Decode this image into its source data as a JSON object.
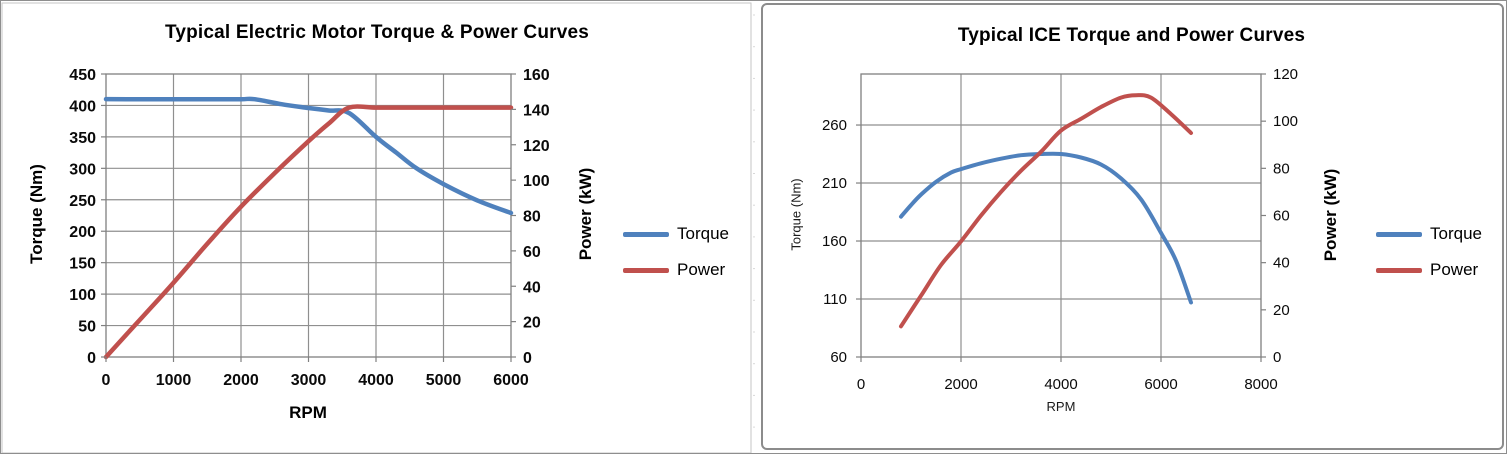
{
  "page": {
    "background": "#ffffff"
  },
  "chart_data": [
    {
      "type": "line",
      "title": "Typical Electric Motor Torque & Power Curves",
      "xlabel": "RPM",
      "ylabel_left": "Torque (Nm)",
      "ylabel_right": "Power (kW)",
      "xlim": [
        0,
        6000
      ],
      "x_ticks": [
        0,
        1000,
        2000,
        3000,
        4000,
        5000,
        6000
      ],
      "ylim_left": [
        0,
        450
      ],
      "y_left_ticks": [
        0,
        50,
        100,
        150,
        200,
        250,
        300,
        350,
        400,
        450
      ],
      "ylim_right": [
        0,
        160
      ],
      "y_right_ticks": [
        0,
        20,
        40,
        60,
        80,
        100,
        120,
        140,
        160
      ],
      "grid": true,
      "legend_position": "right",
      "legend": [
        "Torque",
        "Power"
      ],
      "series": [
        {
          "name": "Torque",
          "axis": "left",
          "color": "#4F81BD",
          "points": [
            [
              0,
              410
            ],
            [
              500,
              410
            ],
            [
              1000,
              410
            ],
            [
              1500,
              410
            ],
            [
              2000,
              410
            ],
            [
              2200,
              410
            ],
            [
              2600,
              402
            ],
            [
              3000,
              396
            ],
            [
              3300,
              392
            ],
            [
              3600,
              388
            ],
            [
              4000,
              350
            ],
            [
              4300,
              325
            ],
            [
              4600,
              300
            ],
            [
              5000,
              275
            ],
            [
              5500,
              249
            ],
            [
              6000,
              229
            ]
          ]
        },
        {
          "name": "Power",
          "axis": "right",
          "color": "#C0504D",
          "points": [
            [
              0,
              0
            ],
            [
              500,
              21
            ],
            [
              1000,
              42
            ],
            [
              1500,
              64
            ],
            [
              2000,
              85
            ],
            [
              2500,
              104
            ],
            [
              3000,
              122
            ],
            [
              3300,
              132
            ],
            [
              3600,
              141
            ],
            [
              4000,
              141
            ],
            [
              4500,
              141
            ],
            [
              5000,
              141
            ],
            [
              5500,
              141
            ],
            [
              6000,
              141
            ]
          ]
        }
      ]
    },
    {
      "type": "line",
      "title": "Typical ICE Torque and Power Curves",
      "xlabel": "RPM",
      "ylabel_left": "Torque (Nm)",
      "ylabel_right": "Power (kW)",
      "xlim": [
        0,
        8000
      ],
      "x_ticks": [
        0,
        2000,
        4000,
        6000,
        8000
      ],
      "ylim_left": [
        60,
        304
      ],
      "y_left_ticks": [
        60,
        110,
        160,
        210,
        260
      ],
      "ylim_right": [
        0,
        120
      ],
      "y_right_ticks": [
        0,
        20,
        40,
        60,
        80,
        100,
        120
      ],
      "grid": true,
      "legend_position": "right",
      "legend": [
        "Torque",
        "Power"
      ],
      "series": [
        {
          "name": "Torque",
          "axis": "left",
          "color": "#4F81BD",
          "points": [
            [
              800,
              181
            ],
            [
              1000,
              191
            ],
            [
              1200,
              200
            ],
            [
              1500,
              211
            ],
            [
              1800,
              219
            ],
            [
              2000,
              222
            ],
            [
              2400,
              227
            ],
            [
              2800,
              231
            ],
            [
              3200,
              234
            ],
            [
              3600,
              235
            ],
            [
              4000,
              235
            ],
            [
              4400,
              232
            ],
            [
              4800,
              226
            ],
            [
              5200,
              214
            ],
            [
              5600,
              196
            ],
            [
              6000,
              167
            ],
            [
              6300,
              143
            ],
            [
              6600,
              107
            ]
          ]
        },
        {
          "name": "Power",
          "axis": "right",
          "color": "#C0504D",
          "points": [
            [
              800,
              13
            ],
            [
              1200,
              26
            ],
            [
              1600,
              39
            ],
            [
              2000,
              49
            ],
            [
              2400,
              60
            ],
            [
              2800,
              70
            ],
            [
              3200,
              79
            ],
            [
              3600,
              87
            ],
            [
              4000,
              96
            ],
            [
              4400,
              101
            ],
            [
              4800,
              106
            ],
            [
              5200,
              110
            ],
            [
              5500,
              111
            ],
            [
              5800,
              110
            ],
            [
              6200,
              103
            ],
            [
              6600,
              95
            ]
          ]
        }
      ]
    }
  ]
}
